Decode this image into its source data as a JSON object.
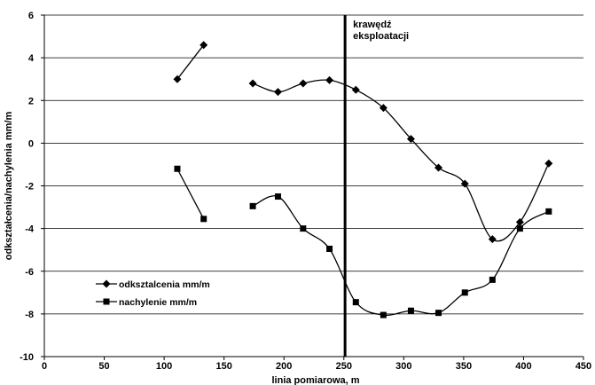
{
  "chart_data": {
    "type": "line",
    "xlabel": "linia pomiarowa, m",
    "ylabel": "odkształcenia/nachylenia mm/m",
    "xlim": [
      0,
      450
    ],
    "ylim": [
      -10,
      6
    ],
    "x_ticks": [
      0,
      50,
      100,
      150,
      200,
      250,
      300,
      350,
      400,
      450
    ],
    "y_ticks": [
      -10,
      -8,
      -6,
      -4,
      -2,
      0,
      2,
      4,
      6
    ],
    "grid": "horizontal",
    "legend_position": "bottom-left",
    "annotation": {
      "x": 251,
      "label_lines": [
        "krawędź",
        "eksploatacji"
      ]
    },
    "series": [
      {
        "name": "odksztalcenia mm/m",
        "marker": "diamond",
        "color": "#000000",
        "segments": [
          [
            [
              111,
              3.0
            ],
            [
              133,
              4.6
            ]
          ],
          [
            [
              174,
              2.8
            ],
            [
              195,
              2.4
            ],
            [
              216,
              2.8
            ],
            [
              238,
              2.95
            ],
            [
              260,
              2.5
            ],
            [
              283,
              1.65
            ],
            [
              306,
              0.2
            ],
            [
              329,
              -1.15
            ],
            [
              351,
              -1.9
            ],
            [
              374,
              -4.5
            ],
            [
              397,
              -3.7
            ],
            [
              421,
              -0.95
            ]
          ]
        ]
      },
      {
        "name": "nachylenie mm/m",
        "marker": "square",
        "color": "#000000",
        "segments": [
          [
            [
              111,
              -1.2
            ],
            [
              133,
              -3.55
            ]
          ],
          [
            [
              174,
              -2.95
            ],
            [
              195,
              -2.5
            ],
            [
              216,
              -4.0
            ],
            [
              238,
              -4.95
            ],
            [
              260,
              -7.45
            ],
            [
              283,
              -8.05
            ],
            [
              306,
              -7.85
            ],
            [
              329,
              -7.95
            ],
            [
              351,
              -7.0
            ],
            [
              374,
              -6.4
            ],
            [
              397,
              -4.0
            ],
            [
              421,
              -3.2
            ]
          ]
        ]
      }
    ]
  }
}
